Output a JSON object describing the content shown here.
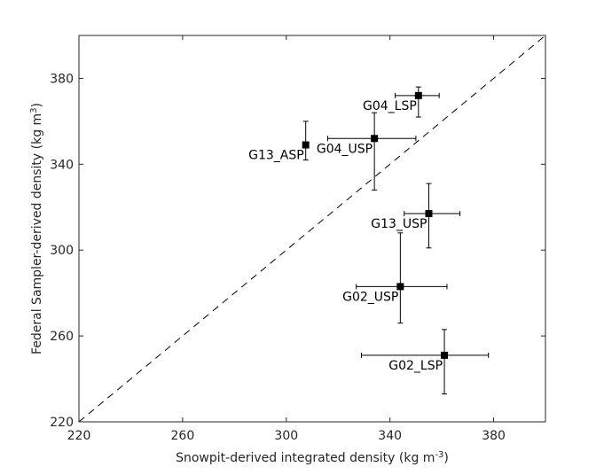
{
  "chart_data": {
    "type": "scatter",
    "xlabel": {
      "text": "Snowpit-derived integrated density (kg m",
      "sup": "-3",
      "close": ")"
    },
    "ylabel": {
      "text": "Federal Sampler-derived density (kg m",
      "sup": "3",
      "close": ")"
    },
    "xlim": [
      220,
      400
    ],
    "ylim": [
      220,
      400
    ],
    "xticks": [
      220,
      260,
      300,
      340,
      380
    ],
    "yticks": [
      220,
      260,
      300,
      340,
      380
    ],
    "grid": false,
    "reference_line": {
      "style": "dashed",
      "from": [
        220,
        220
      ],
      "to": [
        400,
        400
      ]
    },
    "colors": {
      "marker": "#000000",
      "axis": "#262626",
      "line": "#000000"
    },
    "points": [
      {
        "label": "G04_LSP",
        "x": 351,
        "y": 372,
        "xerr": [
          342,
          359
        ],
        "yerr": [
          362,
          376
        ],
        "label_pos": "left"
      },
      {
        "label": "G04_USP",
        "x": 334,
        "y": 352,
        "xerr": [
          316,
          350
        ],
        "yerr": [
          328,
          364
        ],
        "label_pos": "left"
      },
      {
        "label": "G13_ASP",
        "x": 307.5,
        "y": 349,
        "xerr": [
          306.5,
          308.5
        ],
        "yerr": [
          342,
          360
        ],
        "label_pos": "left"
      },
      {
        "label": "G13_USP",
        "x": 355,
        "y": 317,
        "xerr": [
          345.5,
          367
        ],
        "yerr": [
          301,
          331
        ],
        "label_pos": "left"
      },
      {
        "label": "G02_USP",
        "x": 344,
        "y": 283,
        "xerr": [
          327,
          362
        ],
        "yerr": [
          266,
          308
        ],
        "label_pos": "left"
      },
      {
        "label": "G02_LSP",
        "x": 361,
        "y": 251,
        "xerr": [
          329,
          378
        ],
        "yerr": [
          233,
          263
        ],
        "label_pos": "left"
      }
    ]
  }
}
